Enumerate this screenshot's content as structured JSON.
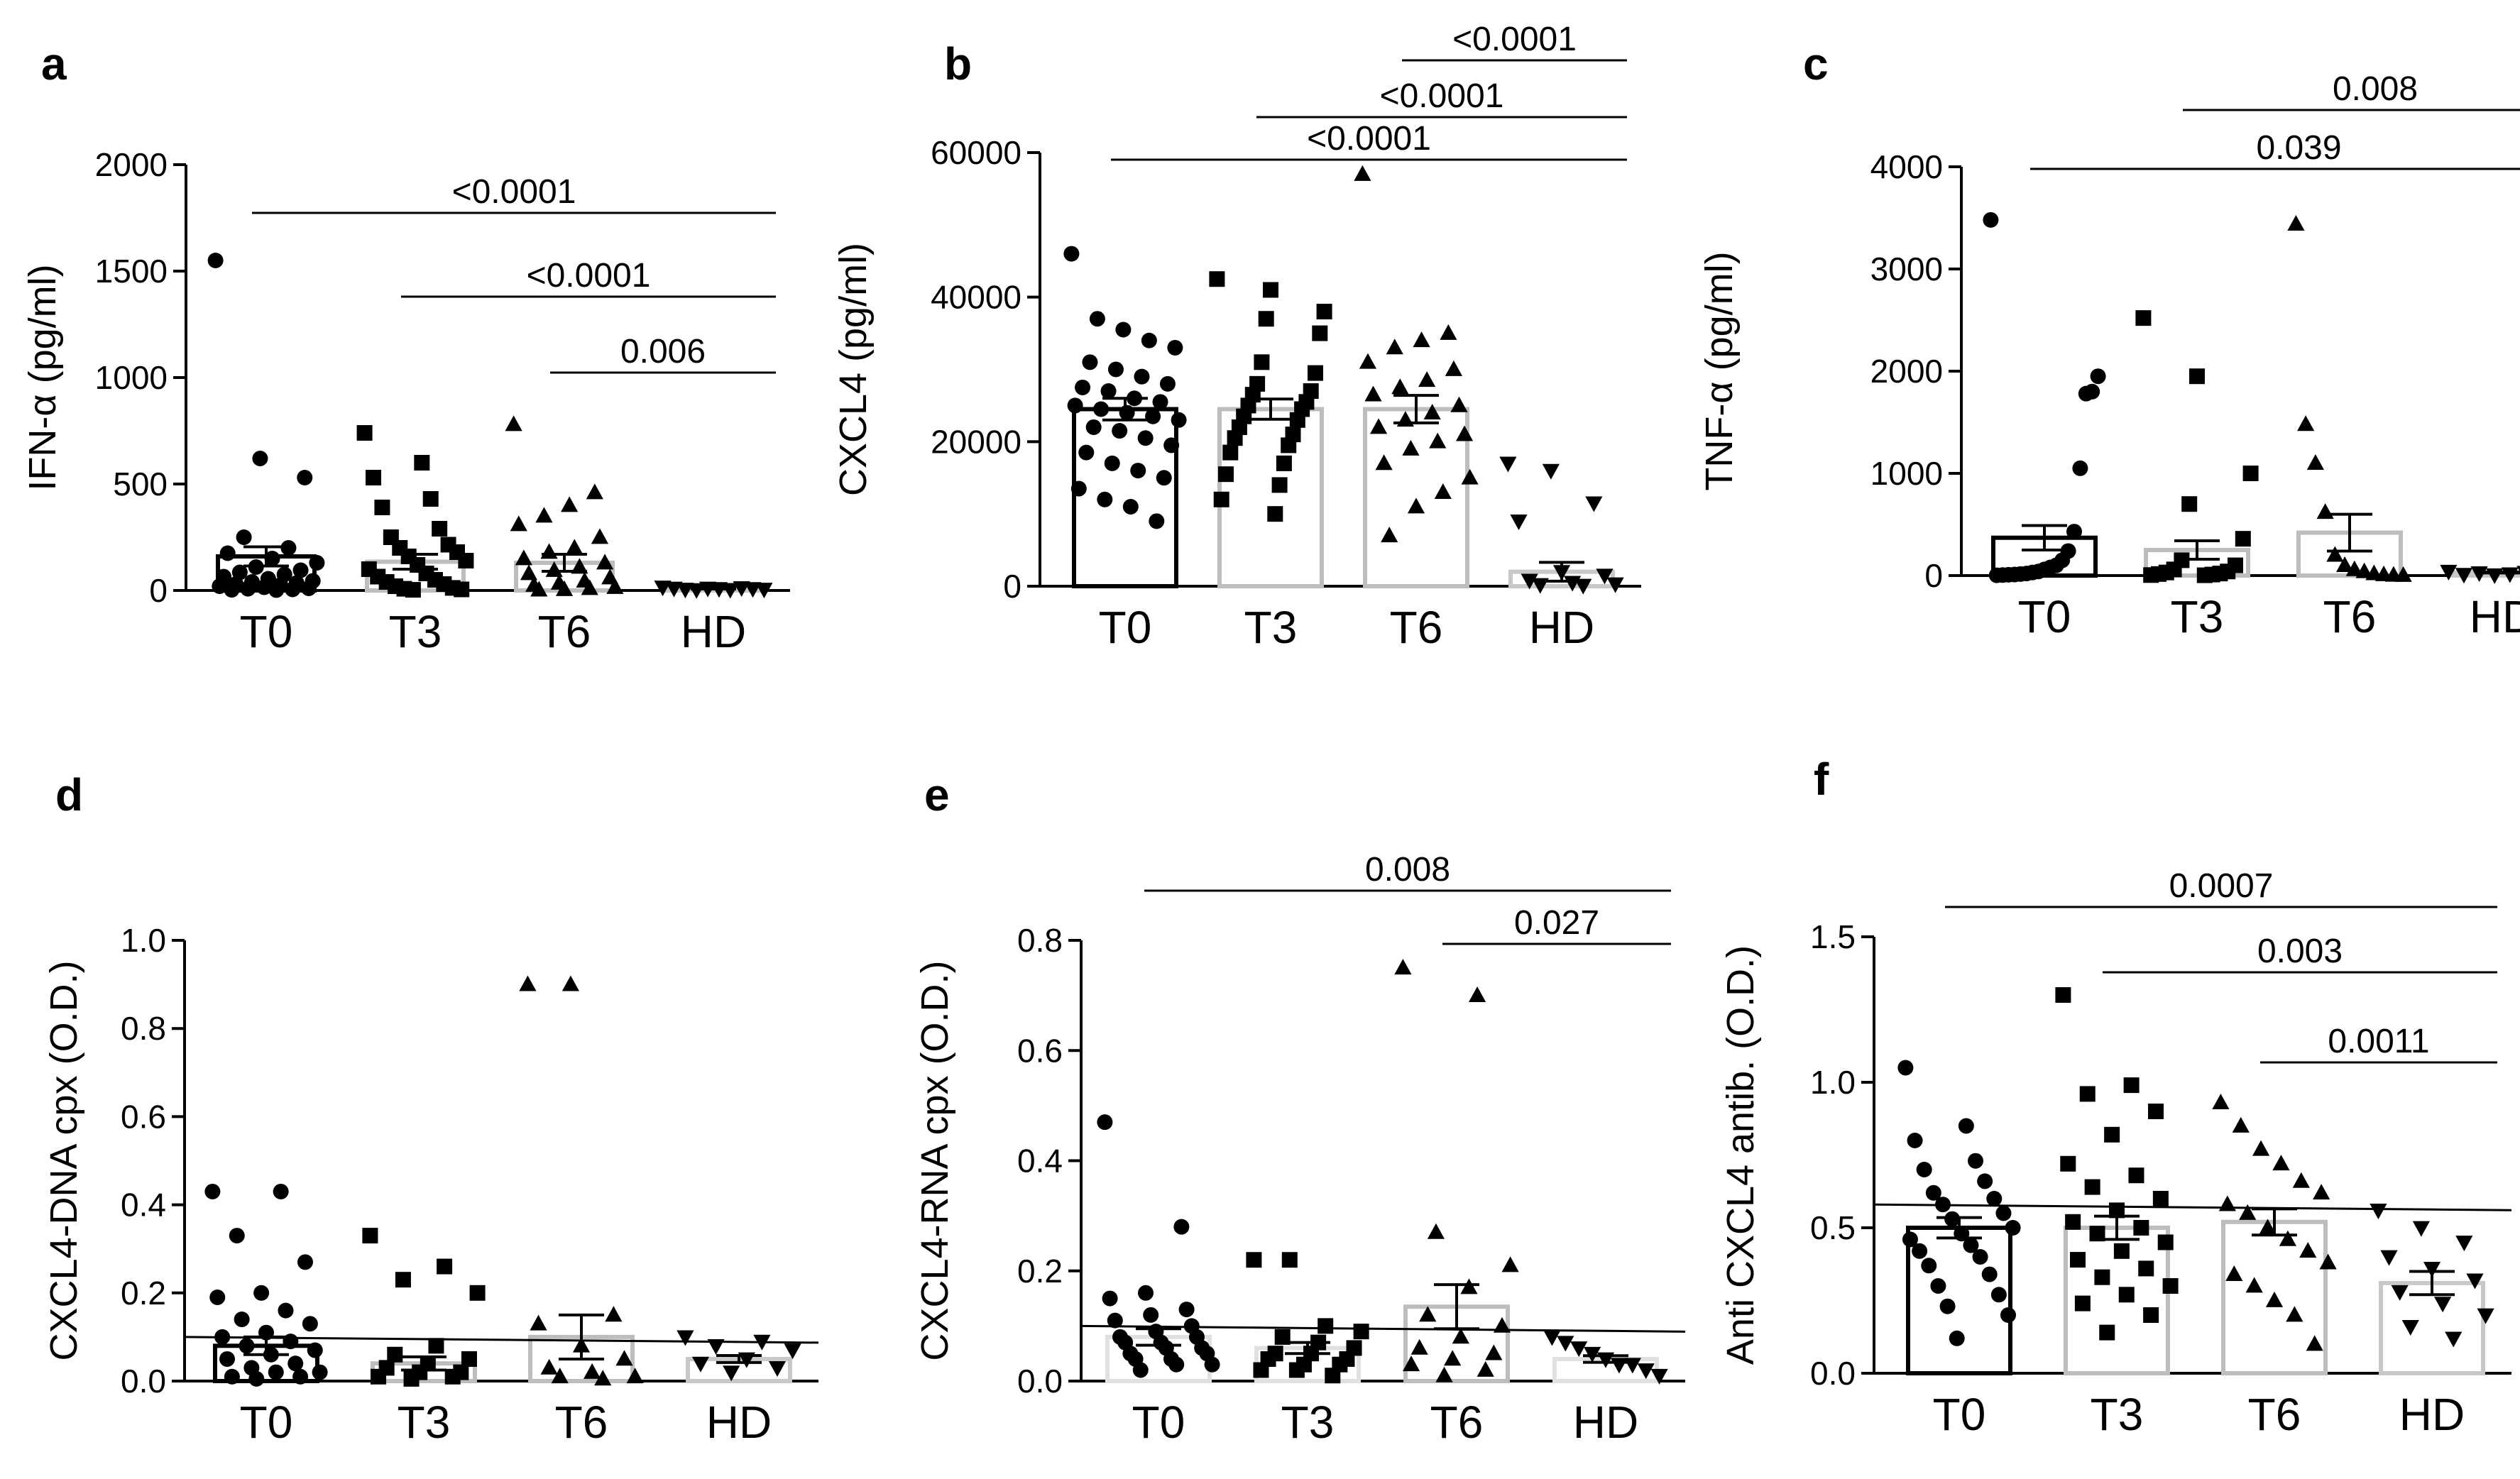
{
  "chart_data": [
    {
      "type": "scatter",
      "panel": "a",
      "ylabel": "IFN-α (pg/ml)",
      "categories": [
        "T0",
        "T3",
        "T6",
        "HD"
      ],
      "ylim": [
        0,
        2000
      ],
      "yticks": [
        0,
        500,
        1000,
        1500,
        2000
      ],
      "ytick_labels": [
        "0",
        "500",
        "1000",
        "1500",
        "2000"
      ],
      "bar_colors": [
        "#000000",
        "#bdbdbd",
        "#bdbdbd",
        "#c8c8c8"
      ],
      "markers": [
        "circle",
        "square",
        "triangle",
        "triangle-down"
      ],
      "means": [
        160,
        135,
        130,
        10
      ],
      "sem": [
        45,
        35,
        40,
        3
      ],
      "points": [
        [
          1550,
          620,
          530,
          250,
          200,
          175,
          150,
          130,
          110,
          95,
          85,
          75,
          65,
          55,
          45,
          40,
          35,
          30,
          25,
          20,
          15,
          10,
          8,
          5,
          3,
          2
        ],
        [
          740,
          600,
          530,
          430,
          390,
          290,
          250,
          215,
          200,
          180,
          160,
          140,
          120,
          100,
          80,
          65,
          50,
          40,
          30,
          20,
          12,
          8,
          5,
          3
        ],
        [
          780,
          460,
          400,
          350,
          310,
          250,
          200,
          180,
          150,
          130,
          110,
          95,
          80,
          60,
          45,
          35,
          25,
          15,
          10,
          5,
          3
        ],
        [
          15,
          12,
          10,
          10,
          8,
          8,
          5,
          5,
          4,
          3
        ]
      ],
      "significance": [
        {
          "from": 0,
          "to": 3,
          "label": "<0.0001"
        },
        {
          "from": 1,
          "to": 3,
          "label": "<0.0001"
        },
        {
          "from": 2,
          "to": 3,
          "label": "0.006"
        }
      ],
      "threshold": null
    },
    {
      "type": "scatter",
      "panel": "b",
      "ylabel": "CXCL4 (pg/ml)",
      "categories": [
        "T0",
        "T3",
        "T6",
        "HD"
      ],
      "ylim": [
        0,
        60000
      ],
      "yticks": [
        0,
        20000,
        40000,
        60000
      ],
      "ytick_labels": [
        "0",
        "20000",
        "40000",
        "60000"
      ],
      "bar_colors": [
        "#000000",
        "#bdbdbd",
        "#bdbdbd",
        "#c8c8c8"
      ],
      "markers": [
        "circle",
        "square",
        "triangle",
        "triangle-down"
      ],
      "means": [
        24500,
        24500,
        24500,
        2000
      ],
      "sem": [
        1500,
        1400,
        1900,
        1300
      ],
      "points": [
        [
          46000,
          37000,
          35500,
          34000,
          33000,
          31000,
          30000,
          29000,
          28000,
          27500,
          27000,
          26000,
          25500,
          25000,
          24500,
          24000,
          23500,
          23000,
          22000,
          21500,
          20500,
          19500,
          18500,
          17000,
          16000,
          15000,
          13500,
          12000,
          11000,
          9000
        ],
        [
          42500,
          41000,
          38000,
          37000,
          35000,
          31000,
          29500,
          28000,
          27000,
          26500,
          25500,
          25000,
          24500,
          23500,
          23000,
          22000,
          21000,
          20500,
          19500,
          18500,
          17000,
          15500,
          14000,
          12000,
          10000
        ],
        [
          57000,
          35000,
          34000,
          33000,
          31000,
          30000,
          28500,
          27500,
          26500,
          25000,
          24000,
          23000,
          22000,
          21000,
          20000,
          19000,
          17000,
          15000,
          13000,
          11000,
          7000
        ],
        [
          17000,
          16000,
          11500,
          9000,
          2000,
          1500,
          800,
          500,
          300,
          200,
          100
        ]
      ],
      "significance": [
        {
          "from": 0,
          "to": 3,
          "label": "<0.0001"
        },
        {
          "from": 1,
          "to": 3,
          "label": "<0.0001"
        },
        {
          "from": 2,
          "to": 3,
          "label": "<0.0001"
        }
      ],
      "threshold": null
    },
    {
      "type": "scatter",
      "panel": "c",
      "ylabel": "TNF-α (pg/ml)",
      "categories": [
        "T0",
        "T3",
        "T6",
        "HD"
      ],
      "ylim": [
        0,
        4000
      ],
      "yticks": [
        0,
        1000,
        2000,
        3000,
        4000
      ],
      "ytick_labels": [
        "0",
        "1000",
        "2000",
        "3000",
        "4000"
      ],
      "bar_colors": [
        "#000000",
        "#bdbdbd",
        "#bdbdbd",
        "#c8c8c8"
      ],
      "markers": [
        "circle",
        "square",
        "triangle",
        "triangle-down"
      ],
      "means": [
        370,
        250,
        420,
        30
      ],
      "sem": [
        120,
        90,
        180,
        5
      ],
      "points": [
        [
          3480,
          1950,
          1800,
          1780,
          1050,
          430,
          240,
          150,
          100,
          80,
          60,
          40,
          30,
          20,
          15,
          10,
          8,
          5,
          3
        ],
        [
          2520,
          1950,
          1000,
          700,
          360,
          150,
          100,
          60,
          40,
          30,
          20,
          15,
          10,
          5,
          3
        ],
        [
          3440,
          1480,
          1100,
          620,
          200,
          100,
          60,
          40,
          20,
          10,
          5,
          3
        ],
        [
          40,
          30,
          25,
          20,
          15,
          10,
          8,
          5
        ]
      ],
      "significance": [
        {
          "from": 1,
          "to": 3,
          "label": "0.008"
        },
        {
          "from": 0,
          "to": 3,
          "label": "0.039"
        }
      ],
      "threshold": null
    },
    {
      "type": "scatter",
      "panel": "d",
      "ylabel": "CXCL4-DNA cpx (O.D.)",
      "categories": [
        "T0",
        "T3",
        "T6",
        "HD"
      ],
      "ylim": [
        0,
        1.0
      ],
      "yticks": [
        0,
        0.2,
        0.4,
        0.6,
        0.8,
        1.0
      ],
      "ytick_labels": [
        "0.0",
        "0.2",
        "0.4",
        "0.6",
        "0.8",
        "1.0"
      ],
      "bar_colors": [
        "#000000",
        "#bdbdbd",
        "#bdbdbd",
        "#c8c8c8"
      ],
      "markers": [
        "circle",
        "square",
        "triangle",
        "triangle-down"
      ],
      "means": [
        0.08,
        0.04,
        0.1,
        0.05
      ],
      "sem": [
        0.02,
        0.015,
        0.05,
        0.008
      ],
      "points": [
        [
          0.43,
          0.43,
          0.33,
          0.27,
          0.2,
          0.19,
          0.16,
          0.14,
          0.13,
          0.11,
          0.1,
          0.09,
          0.08,
          0.07,
          0.06,
          0.05,
          0.04,
          0.03,
          0.02,
          0.02,
          0.01,
          0.01,
          0.005
        ],
        [
          0.33,
          0.26,
          0.23,
          0.2,
          0.08,
          0.06,
          0.05,
          0.04,
          0.03,
          0.02,
          0.02,
          0.01,
          0.01,
          0.005
        ],
        [
          0.9,
          0.9,
          0.15,
          0.13,
          0.08,
          0.05,
          0.03,
          0.02,
          0.01,
          0.01,
          0.005
        ],
        [
          0.1,
          0.09,
          0.08,
          0.07,
          0.05,
          0.04,
          0.03,
          0.02
        ]
      ],
      "significance": [],
      "threshold": 0.1
    },
    {
      "type": "scatter",
      "panel": "e",
      "ylabel": "CXCL4-RNA cpx (O.D.)",
      "categories": [
        "T0",
        "T3",
        "T6",
        "HD"
      ],
      "ylim": [
        0,
        0.8
      ],
      "yticks": [
        0,
        0.2,
        0.4,
        0.6,
        0.8
      ],
      "ytick_labels": [
        "0.0",
        "0.2",
        "0.4",
        "0.6",
        "0.8"
      ],
      "bar_colors": [
        "#e0e0e0",
        "#e0e0e0",
        "#bdbdbd",
        "#e0e0e0"
      ],
      "markers": [
        "circle",
        "square",
        "triangle",
        "triangle-down"
      ],
      "means": [
        0.08,
        0.06,
        0.135,
        0.04
      ],
      "sem": [
        0.015,
        0.01,
        0.04,
        0.006
      ],
      "points": [
        [
          0.47,
          0.28,
          0.16,
          0.15,
          0.13,
          0.12,
          0.11,
          0.1,
          0.09,
          0.08,
          0.08,
          0.07,
          0.07,
          0.06,
          0.06,
          0.05,
          0.05,
          0.04,
          0.04,
          0.03,
          0.03,
          0.02
        ],
        [
          0.22,
          0.22,
          0.1,
          0.09,
          0.08,
          0.07,
          0.06,
          0.05,
          0.05,
          0.04,
          0.04,
          0.03,
          0.03,
          0.02,
          0.02,
          0.01
        ],
        [
          0.75,
          0.7,
          0.27,
          0.21,
          0.17,
          0.12,
          0.1,
          0.08,
          0.06,
          0.05,
          0.04,
          0.03,
          0.02,
          0.01
        ],
        [
          0.08,
          0.07,
          0.06,
          0.05,
          0.04,
          0.03,
          0.03,
          0.02,
          0.01
        ]
      ],
      "significance": [
        {
          "from": 2,
          "to": 3,
          "label": "0.027"
        },
        {
          "from": 0,
          "to": 3,
          "label": "0.008"
        }
      ],
      "threshold": 0.1
    },
    {
      "type": "scatter",
      "panel": "f",
      "ylabel": "Anti CXCL4 antib. (O.D.)",
      "categories": [
        "T0",
        "T3",
        "T6",
        "HD"
      ],
      "ylim": [
        0,
        1.5
      ],
      "yticks": [
        0,
        0.5,
        1.0,
        1.5
      ],
      "ytick_labels": [
        "0.0",
        "0.5",
        "1.0",
        "1.5"
      ],
      "bar_colors": [
        "#000000",
        "#bdbdbd",
        "#bdbdbd",
        "#c8c8c8"
      ],
      "markers": [
        "circle",
        "square",
        "triangle",
        "triangle-down"
      ],
      "means": [
        0.5,
        0.5,
        0.52,
        0.31
      ],
      "sem": [
        0.035,
        0.04,
        0.045,
        0.04
      ],
      "points": [
        [
          1.05,
          0.85,
          0.8,
          0.73,
          0.7,
          0.66,
          0.62,
          0.6,
          0.58,
          0.55,
          0.53,
          0.5,
          0.48,
          0.46,
          0.44,
          0.42,
          0.4,
          0.37,
          0.34,
          0.3,
          0.27,
          0.23,
          0.2,
          0.12
        ],
        [
          1.3,
          0.99,
          0.96,
          0.9,
          0.82,
          0.72,
          0.68,
          0.64,
          0.6,
          0.56,
          0.52,
          0.5,
          0.48,
          0.45,
          0.42,
          0.39,
          0.36,
          0.33,
          0.3,
          0.27,
          0.24,
          0.2,
          0.14
        ],
        [
          0.93,
          0.85,
          0.77,
          0.72,
          0.66,
          0.62,
          0.58,
          0.55,
          0.5,
          0.46,
          0.42,
          0.38,
          0.34,
          0.3,
          0.25,
          0.2,
          0.1
        ],
        [
          0.56,
          0.5,
          0.45,
          0.4,
          0.36,
          0.32,
          0.28,
          0.24,
          0.2,
          0.16,
          0.12
        ]
      ],
      "significance": [
        {
          "from": 0,
          "to": 3,
          "label": "0.0007"
        },
        {
          "from": 1,
          "to": 3,
          "label": "0.003"
        },
        {
          "from": 2,
          "to": 3,
          "label": "0.0011"
        }
      ],
      "threshold": 0.58
    }
  ]
}
